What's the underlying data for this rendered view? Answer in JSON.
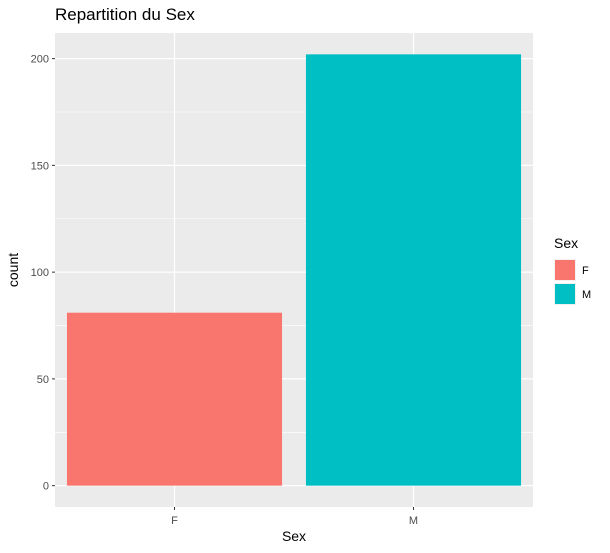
{
  "chart_data": {
    "type": "bar",
    "title": "Repartition du Sex",
    "xlabel": "Sex",
    "ylabel": "count",
    "categories": [
      "F",
      "M"
    ],
    "values": [
      81,
      202
    ],
    "colors": [
      "#F8766D",
      "#00BFC4"
    ],
    "ylim": [
      -10,
      212
    ],
    "yticks": [
      0,
      50,
      100,
      150,
      200
    ],
    "grid": true,
    "legend": {
      "title": "Sex",
      "placement": "right",
      "entries": [
        {
          "label": "F",
          "color": "#F8766D"
        },
        {
          "label": "M",
          "color": "#00BFC4"
        }
      ]
    },
    "panel_background": "#EBEBEB",
    "grid_color": "#FFFFFF"
  }
}
